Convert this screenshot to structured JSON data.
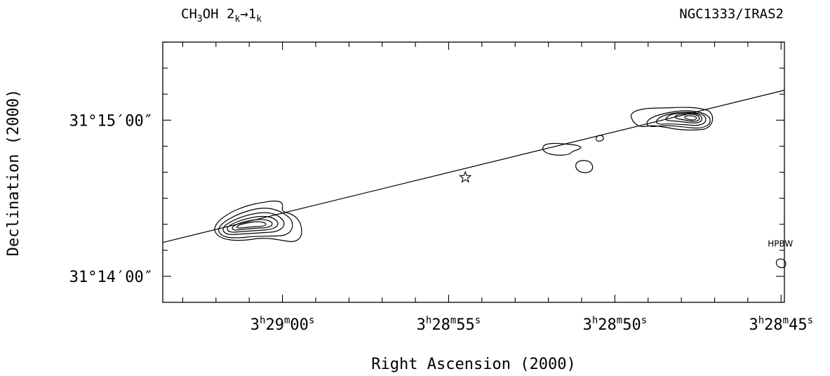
{
  "chart_data": {
    "type": "contour",
    "title_left": {
      "main": "CH",
      "sub1": "3",
      "mid": "OH 2",
      "sub2": "k",
      "arrow": "→",
      "mid2": "1",
      "sub3": "k"
    },
    "title_right": "NGC1333/IRAS2",
    "xlabel": "Right Ascension (2000)",
    "ylabel": "Declination (2000)",
    "x_ticks": [
      {
        "ra_s": 60,
        "h": "3",
        "hs": "h",
        "m": "29",
        "ms": "m",
        "s": "00",
        "ss": "s"
      },
      {
        "ra_s": 55,
        "h": "3",
        "hs": "h",
        "m": "28",
        "ms": "m",
        "s": "55",
        "ss": "s"
      },
      {
        "ra_s": 50,
        "h": "3",
        "hs": "h",
        "m": "28",
        "ms": "m",
        "s": "50",
        "ss": "s"
      },
      {
        "ra_s": 45,
        "h": "3",
        "hs": "h",
        "m": "28",
        "ms": "m",
        "s": "45",
        "ss": "s"
      }
    ],
    "y_ticks": [
      {
        "dec_arcsec": 0,
        "label": "31°15′00″"
      },
      {
        "dec_arcsec": -60,
        "label": "31°14′00″"
      }
    ],
    "ra_range_s": [
      63.6,
      44.9
    ],
    "dec_range_arcsec": [
      -70,
      30
    ],
    "outflow_axis": [
      [
        63.6,
        -47
      ],
      [
        44.9,
        11.5
      ]
    ],
    "source_position": {
      "ra_s": 54.5,
      "dec_arcsec": -22,
      "marker": "star"
    },
    "beam_label": "HPBW",
    "beam_position": {
      "ra_s": 45.0,
      "dec_arcsec": -55
    }
  }
}
